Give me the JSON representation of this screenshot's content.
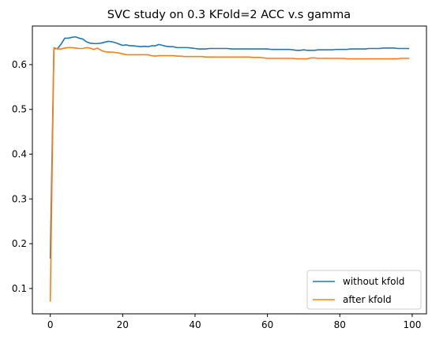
{
  "chart_data": {
    "type": "line",
    "title": "SVC study on 0.3 KFold=2 ACC v.s gamma",
    "xlabel": "",
    "ylabel": "",
    "xlim": [
      -4.95,
      103.95
    ],
    "ylim": [
      0.0434,
      0.6862
    ],
    "xticks": [
      0,
      20,
      40,
      60,
      80,
      100
    ],
    "yticks": [
      0.1,
      0.2,
      0.3,
      0.4,
      0.5,
      0.6
    ],
    "grid": false,
    "legend_position": "lower-right",
    "series": [
      {
        "name": "without kfold",
        "color": "#1f77b4",
        "x": [
          0,
          1,
          2,
          3,
          4,
          5,
          6,
          7,
          8,
          9,
          10,
          11,
          12,
          13,
          14,
          15,
          16,
          17,
          18,
          19,
          20,
          21,
          22,
          23,
          24,
          25,
          26,
          27,
          28,
          29,
          30,
          31,
          32,
          33,
          34,
          35,
          36,
          37,
          38,
          39,
          40,
          41,
          42,
          43,
          44,
          45,
          46,
          47,
          48,
          49,
          50,
          51,
          52,
          53,
          54,
          55,
          56,
          57,
          58,
          59,
          60,
          61,
          62,
          63,
          64,
          65,
          66,
          67,
          68,
          69,
          70,
          71,
          72,
          73,
          74,
          75,
          76,
          77,
          78,
          79,
          80,
          81,
          82,
          83,
          84,
          85,
          86,
          87,
          88,
          89,
          90,
          91,
          92,
          93,
          94,
          95,
          96,
          97,
          98,
          99
        ],
        "values": [
          0.168,
          0.635,
          0.636,
          0.646,
          0.659,
          0.659,
          0.661,
          0.662,
          0.659,
          0.657,
          0.651,
          0.648,
          0.647,
          0.647,
          0.648,
          0.65,
          0.652,
          0.651,
          0.649,
          0.646,
          0.643,
          0.644,
          0.642,
          0.642,
          0.641,
          0.64,
          0.641,
          0.64,
          0.642,
          0.642,
          0.645,
          0.643,
          0.641,
          0.64,
          0.64,
          0.638,
          0.638,
          0.638,
          0.638,
          0.637,
          0.636,
          0.635,
          0.635,
          0.635,
          0.636,
          0.636,
          0.636,
          0.636,
          0.636,
          0.636,
          0.635,
          0.635,
          0.635,
          0.635,
          0.635,
          0.635,
          0.635,
          0.635,
          0.635,
          0.635,
          0.635,
          0.634,
          0.634,
          0.634,
          0.634,
          0.634,
          0.634,
          0.633,
          0.632,
          0.632,
          0.633,
          0.632,
          0.632,
          0.632,
          0.633,
          0.633,
          0.633,
          0.633,
          0.633,
          0.634,
          0.634,
          0.634,
          0.634,
          0.635,
          0.635,
          0.635,
          0.635,
          0.635,
          0.636,
          0.636,
          0.636,
          0.636,
          0.637,
          0.637,
          0.637,
          0.637,
          0.636,
          0.636,
          0.636,
          0.636
        ]
      },
      {
        "name": "after kfold",
        "color": "#ff7f0e",
        "x": [
          0,
          1,
          2,
          3,
          4,
          5,
          6,
          7,
          8,
          9,
          10,
          11,
          12,
          13,
          14,
          15,
          16,
          17,
          18,
          19,
          20,
          21,
          22,
          23,
          24,
          25,
          26,
          27,
          28,
          29,
          30,
          31,
          32,
          33,
          34,
          35,
          36,
          37,
          38,
          39,
          40,
          41,
          42,
          43,
          44,
          45,
          46,
          47,
          48,
          49,
          50,
          51,
          52,
          53,
          54,
          55,
          56,
          57,
          58,
          59,
          60,
          61,
          62,
          63,
          64,
          65,
          66,
          67,
          68,
          69,
          70,
          71,
          72,
          73,
          74,
          75,
          76,
          77,
          78,
          79,
          80,
          81,
          82,
          83,
          84,
          85,
          86,
          87,
          88,
          89,
          90,
          91,
          92,
          93,
          94,
          95,
          96,
          97,
          98,
          99
        ],
        "values": [
          0.072,
          0.638,
          0.635,
          0.635,
          0.637,
          0.638,
          0.638,
          0.637,
          0.636,
          0.636,
          0.638,
          0.637,
          0.634,
          0.637,
          0.632,
          0.629,
          0.628,
          0.628,
          0.627,
          0.626,
          0.624,
          0.622,
          0.622,
          0.622,
          0.622,
          0.622,
          0.622,
          0.622,
          0.62,
          0.619,
          0.62,
          0.62,
          0.62,
          0.62,
          0.62,
          0.619,
          0.619,
          0.618,
          0.618,
          0.618,
          0.618,
          0.618,
          0.618,
          0.617,
          0.617,
          0.617,
          0.617,
          0.617,
          0.617,
          0.617,
          0.617,
          0.617,
          0.617,
          0.617,
          0.617,
          0.617,
          0.616,
          0.616,
          0.616,
          0.615,
          0.614,
          0.614,
          0.614,
          0.614,
          0.614,
          0.614,
          0.614,
          0.614,
          0.613,
          0.613,
          0.613,
          0.613,
          0.615,
          0.615,
          0.614,
          0.614,
          0.614,
          0.614,
          0.614,
          0.614,
          0.614,
          0.614,
          0.613,
          0.613,
          0.613,
          0.613,
          0.613,
          0.613,
          0.613,
          0.613,
          0.613,
          0.613,
          0.613,
          0.613,
          0.613,
          0.613,
          0.613,
          0.614,
          0.614,
          0.614
        ]
      }
    ]
  }
}
